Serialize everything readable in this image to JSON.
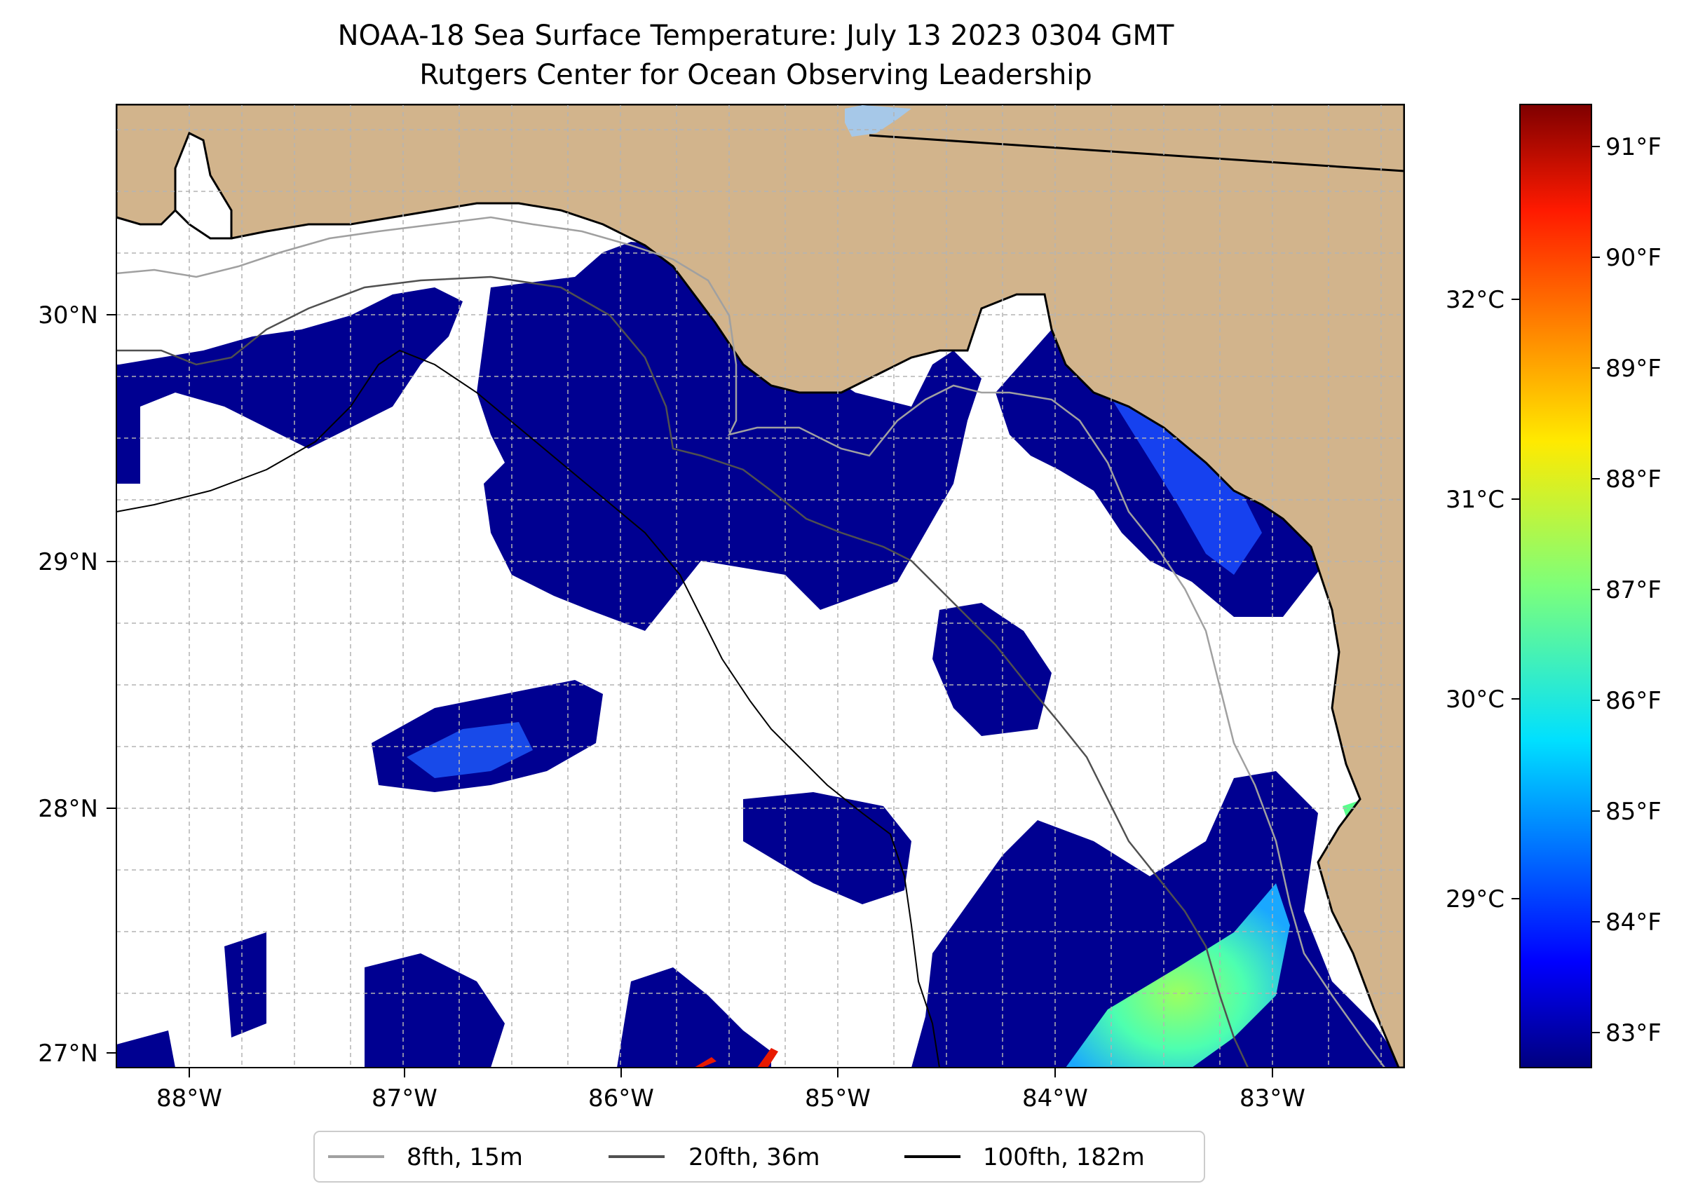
{
  "title": {
    "line1": "NOAA-18 Sea Surface Temperature: July 13 2023 0304 GMT",
    "line2": "Rutgers Center for Ocean Observing Leadership"
  },
  "map": {
    "lon_range": [
      -88.33,
      -82.38
    ],
    "lat_range": [
      26.95,
      30.85
    ],
    "lat_ticks": [
      {
        "value": 30,
        "label": "30°N"
      },
      {
        "value": 29,
        "label": "29°N"
      },
      {
        "value": 28,
        "label": "28°N"
      },
      {
        "value": 27,
        "label": "27°N"
      }
    ],
    "lon_ticks": [
      {
        "value": -88,
        "label": "88°W"
      },
      {
        "value": -87,
        "label": "87°W"
      },
      {
        "value": -86,
        "label": "86°W"
      },
      {
        "value": -85,
        "label": "85°W"
      },
      {
        "value": -84,
        "label": "84°W"
      },
      {
        "value": -83,
        "label": "83°W"
      }
    ],
    "colors": {
      "land": "#d2b48c",
      "water_nodata": "#ffffff",
      "lake": "#a6c8e8",
      "gridline": "#b3b3b3"
    }
  },
  "colorbar": {
    "colormap": "jet",
    "range_f": [
      82.7,
      91.4
    ],
    "f_ticks": [
      {
        "value": 91,
        "label": "91°F"
      },
      {
        "value": 90,
        "label": "90°F"
      },
      {
        "value": 89,
        "label": "89°F"
      },
      {
        "value": 88,
        "label": "88°F"
      },
      {
        "value": 87,
        "label": "87°F"
      },
      {
        "value": 86,
        "label": "86°F"
      },
      {
        "value": 85,
        "label": "85°F"
      },
      {
        "value": 84,
        "label": "84°F"
      },
      {
        "value": 83,
        "label": "83°F"
      }
    ],
    "c_ticks": [
      {
        "value": 32,
        "label": "32°C"
      },
      {
        "value": 31,
        "label": "31°C"
      },
      {
        "value": 30,
        "label": "30°C"
      },
      {
        "value": 29,
        "label": "29°C"
      }
    ]
  },
  "legend": [
    {
      "label": "8fth, 15m",
      "color": "#a0a0a0"
    },
    {
      "label": "20fth, 36m",
      "color": "#505050"
    },
    {
      "label": "100fth, 182m",
      "color": "#000000"
    }
  ]
}
